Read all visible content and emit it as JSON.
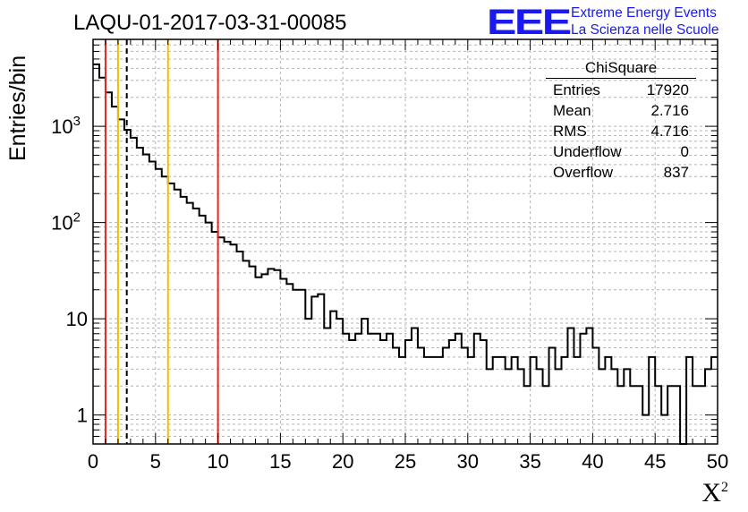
{
  "title": "LAQU-01-2017-03-31-00085",
  "logo": {
    "text": "EEE",
    "line1": "Extreme Energy Events",
    "line2": "La Scienza nelle Scuole",
    "color": "#1a1af0"
  },
  "stats": {
    "name": "ChiSquare",
    "rows": [
      {
        "label": "Entries",
        "value": "17920"
      },
      {
        "label": "Mean",
        "value": "2.716"
      },
      {
        "label": "RMS",
        "value": "4.716"
      },
      {
        "label": "Underflow",
        "value": "0"
      },
      {
        "label": "Overflow",
        "value": "837"
      }
    ]
  },
  "chart_data": {
    "type": "histogram",
    "xlabel": "X",
    "xlabel_sup": "2",
    "ylabel": "Entries/bin",
    "xlim": [
      0,
      50
    ],
    "ylim": [
      0.5,
      8000
    ],
    "y_scale": "log",
    "grid": true,
    "bin_width": 0.5,
    "x_ticks": [
      "0",
      "5",
      "10",
      "15",
      "20",
      "25",
      "30",
      "35",
      "40",
      "45",
      "50"
    ],
    "y_ticks": [
      {
        "value": 1,
        "label": "1"
      },
      {
        "value": 10,
        "label": "10"
      },
      {
        "value": 100,
        "label": "10",
        "sup": "2"
      },
      {
        "value": 1000,
        "label": "10",
        "sup": "3"
      }
    ],
    "values": [
      4400,
      3200,
      2250,
      1600,
      1180,
      920,
      760,
      600,
      510,
      430,
      360,
      300,
      255,
      220,
      185,
      160,
      140,
      118,
      100,
      80,
      70,
      63,
      59,
      50,
      40,
      35,
      27,
      29,
      33,
      32,
      26,
      23,
      20,
      20,
      10,
      17,
      18,
      8,
      12,
      10,
      7,
      6,
      7,
      10,
      7,
      7,
      6,
      7,
      5,
      4,
      6,
      8,
      5,
      4,
      4,
      4,
      5,
      6,
      7,
      5,
      4,
      7,
      6,
      3,
      4,
      4,
      3,
      4,
      3,
      2,
      4,
      3,
      2,
      5,
      3,
      4,
      8,
      4,
      7,
      8,
      5,
      3,
      4,
      3,
      2,
      3,
      2,
      2,
      1,
      4,
      2,
      1,
      2,
      2,
      0.5,
      4,
      2,
      2,
      3,
      4
    ],
    "vlines": [
      {
        "x": 1.0,
        "color": "#e8281e",
        "style": "solid"
      },
      {
        "x": 2.0,
        "color": "#f0c000",
        "style": "solid"
      },
      {
        "x": 2.7,
        "color": "#000000",
        "style": "dashed"
      },
      {
        "x": 6.0,
        "color": "#f0c000",
        "style": "solid"
      },
      {
        "x": 10.0,
        "color": "#e8281e",
        "style": "solid"
      }
    ]
  }
}
